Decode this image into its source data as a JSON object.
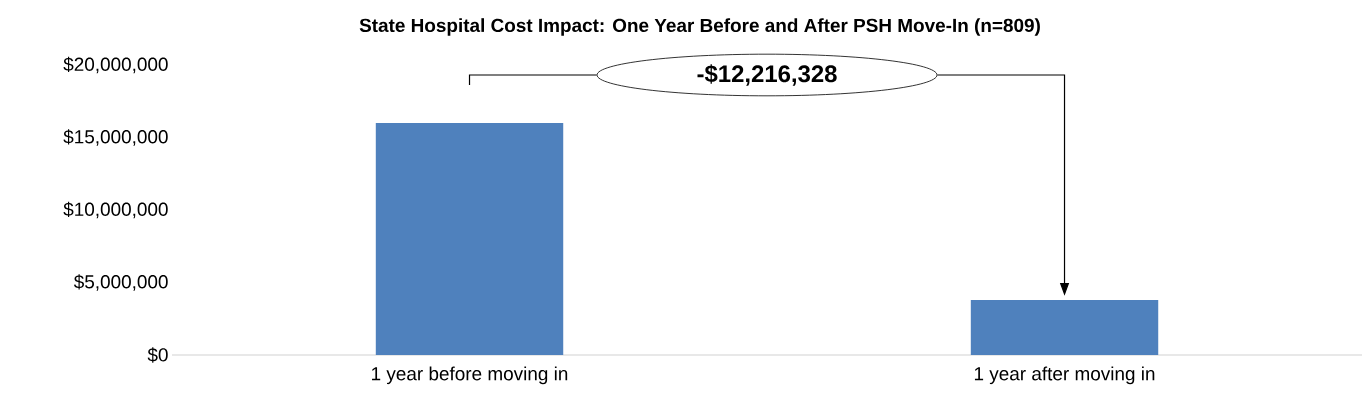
{
  "chart_data": {
    "type": "bar",
    "title": "State Hospital Cost Impact: One Year Before and After PSH Move-In (n=809)",
    "categories": [
      "1 year before moving in",
      "1 year after moving in"
    ],
    "values": [
      16000000,
      3800000
    ],
    "color": "#4f81bd",
    "ylim": [
      0,
      20000000
    ],
    "yticks": [
      {
        "value": 0,
        "label": "$0"
      },
      {
        "value": 5000000,
        "label": "$5,000,000"
      },
      {
        "value": 10000000,
        "label": "$10,000,000"
      },
      {
        "value": 15000000,
        "label": "$15,000,000"
      },
      {
        "value": 20000000,
        "label": "$20,000,000"
      }
    ],
    "grid": false,
    "annotations": [
      "-$12,216,328"
    ]
  }
}
